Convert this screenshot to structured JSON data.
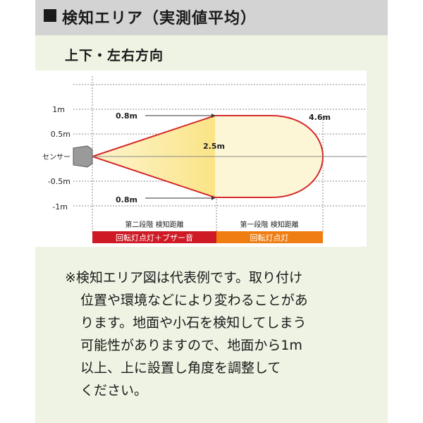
{
  "header": {
    "title": "検知エリア（実測値平均）"
  },
  "subtitle": "上下・左右方向",
  "diagram": {
    "y_labels": [
      "1m",
      "0.5m",
      "センサー",
      "-0.5m",
      "-1m"
    ],
    "dist_labels": {
      "top_width": "0.8m",
      "bottom_width": "0.8m",
      "mid_range": "2.5m",
      "max_range": "4.6m"
    },
    "zones": [
      {
        "label": "第二段階 検知距離",
        "action": "回転灯点灯＋ブザー音",
        "color": "#cf1a26"
      },
      {
        "label": "第一段階 検知距離",
        "action": "回転灯点灯",
        "color": "#ef7d12"
      }
    ],
    "colors": {
      "outline": "#d42a2a",
      "inner_fill": "#f9e68c",
      "outer_fill": "#fdf6d6"
    }
  },
  "note": {
    "lines": [
      "※検知エリア図は代表例です。取り付け",
      "位置や環境などにより変わることがあ",
      "ります。地面や小石を検知してしまう",
      "可能性がありますので、地面から1m",
      "以上、上に設置し角度を調整して",
      "ください。"
    ]
  }
}
